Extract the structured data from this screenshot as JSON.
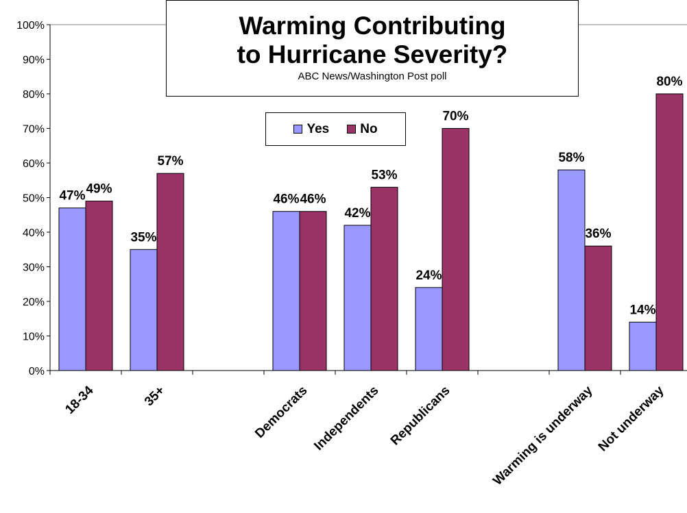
{
  "chart_data": {
    "type": "bar",
    "title_line1": "Warming Contributing",
    "title_line2": "to Hurricane Severity?",
    "subtitle": "ABC News/Washington Post poll",
    "categories": [
      "18-34",
      "35+",
      "",
      "Democrats",
      "Independents",
      "Republicans",
      "",
      "Warming is underway",
      "Not underway"
    ],
    "series": [
      {
        "name": "Yes",
        "color": "#9999FF",
        "values": [
          47,
          35,
          null,
          46,
          42,
          24,
          null,
          58,
          14
        ],
        "labels": [
          "47%",
          "35%",
          "",
          "46%",
          "42%",
          "24%",
          "",
          "58%",
          "14%"
        ]
      },
      {
        "name": "No",
        "color": "#993366",
        "values": [
          49,
          57,
          null,
          46,
          53,
          70,
          null,
          36,
          80
        ],
        "labels": [
          "49%",
          "57%",
          "",
          "46%",
          "53%",
          "70%",
          "",
          "36%",
          "80%"
        ]
      }
    ],
    "y_ticks": [
      "0%",
      "10%",
      "20%",
      "30%",
      "40%",
      "50%",
      "60%",
      "70%",
      "80%",
      "90%",
      "100%"
    ],
    "ylim": [
      0,
      100
    ],
    "grid": false,
    "legend_position": "top-center"
  }
}
